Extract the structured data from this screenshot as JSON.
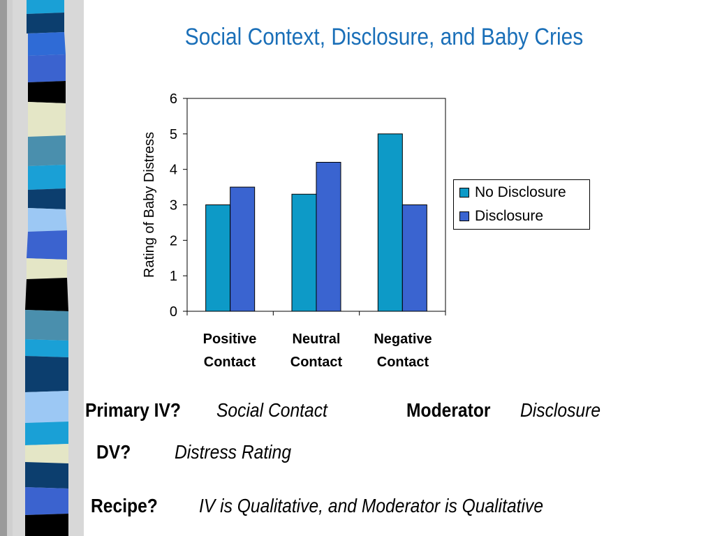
{
  "slide": {
    "title": "Social Context, Disclosure, and Baby Cries",
    "primary_iv_label": "Primary IV?",
    "primary_iv_answer": "Social Contact",
    "moderator_label": "Moderator",
    "moderator_answer": "Disclosure",
    "dv_label": "DV?",
    "dv_answer": "Distress Rating",
    "recipe_label": "Recipe?",
    "recipe_answer": "IV is Qualitative, and Moderator is Qualitative"
  },
  "colors": {
    "title": "#1a6fb8",
    "no_disclosure": "#0d9ac7",
    "disclosure": "#3a64d0"
  },
  "chart_data": {
    "type": "bar",
    "categories": [
      "Positive Contact",
      "Neutral Contact",
      "Negative Contact"
    ],
    "category_lines": [
      [
        "Positive",
        "Contact"
      ],
      [
        "Neutral",
        "Contact"
      ],
      [
        "Negative",
        "Contact"
      ]
    ],
    "series": [
      {
        "name": "No Disclosure",
        "values": [
          3.0,
          3.3,
          5.0
        ]
      },
      {
        "name": "Disclosure",
        "values": [
          3.5,
          4.2,
          3.0
        ]
      }
    ],
    "ylabel": "Rating of Baby Distress",
    "ylim": [
      0,
      6
    ],
    "yticks": [
      "0",
      "1",
      "2",
      "3",
      "4",
      "5",
      "6"
    ],
    "legend_position": "right",
    "grid": false
  }
}
